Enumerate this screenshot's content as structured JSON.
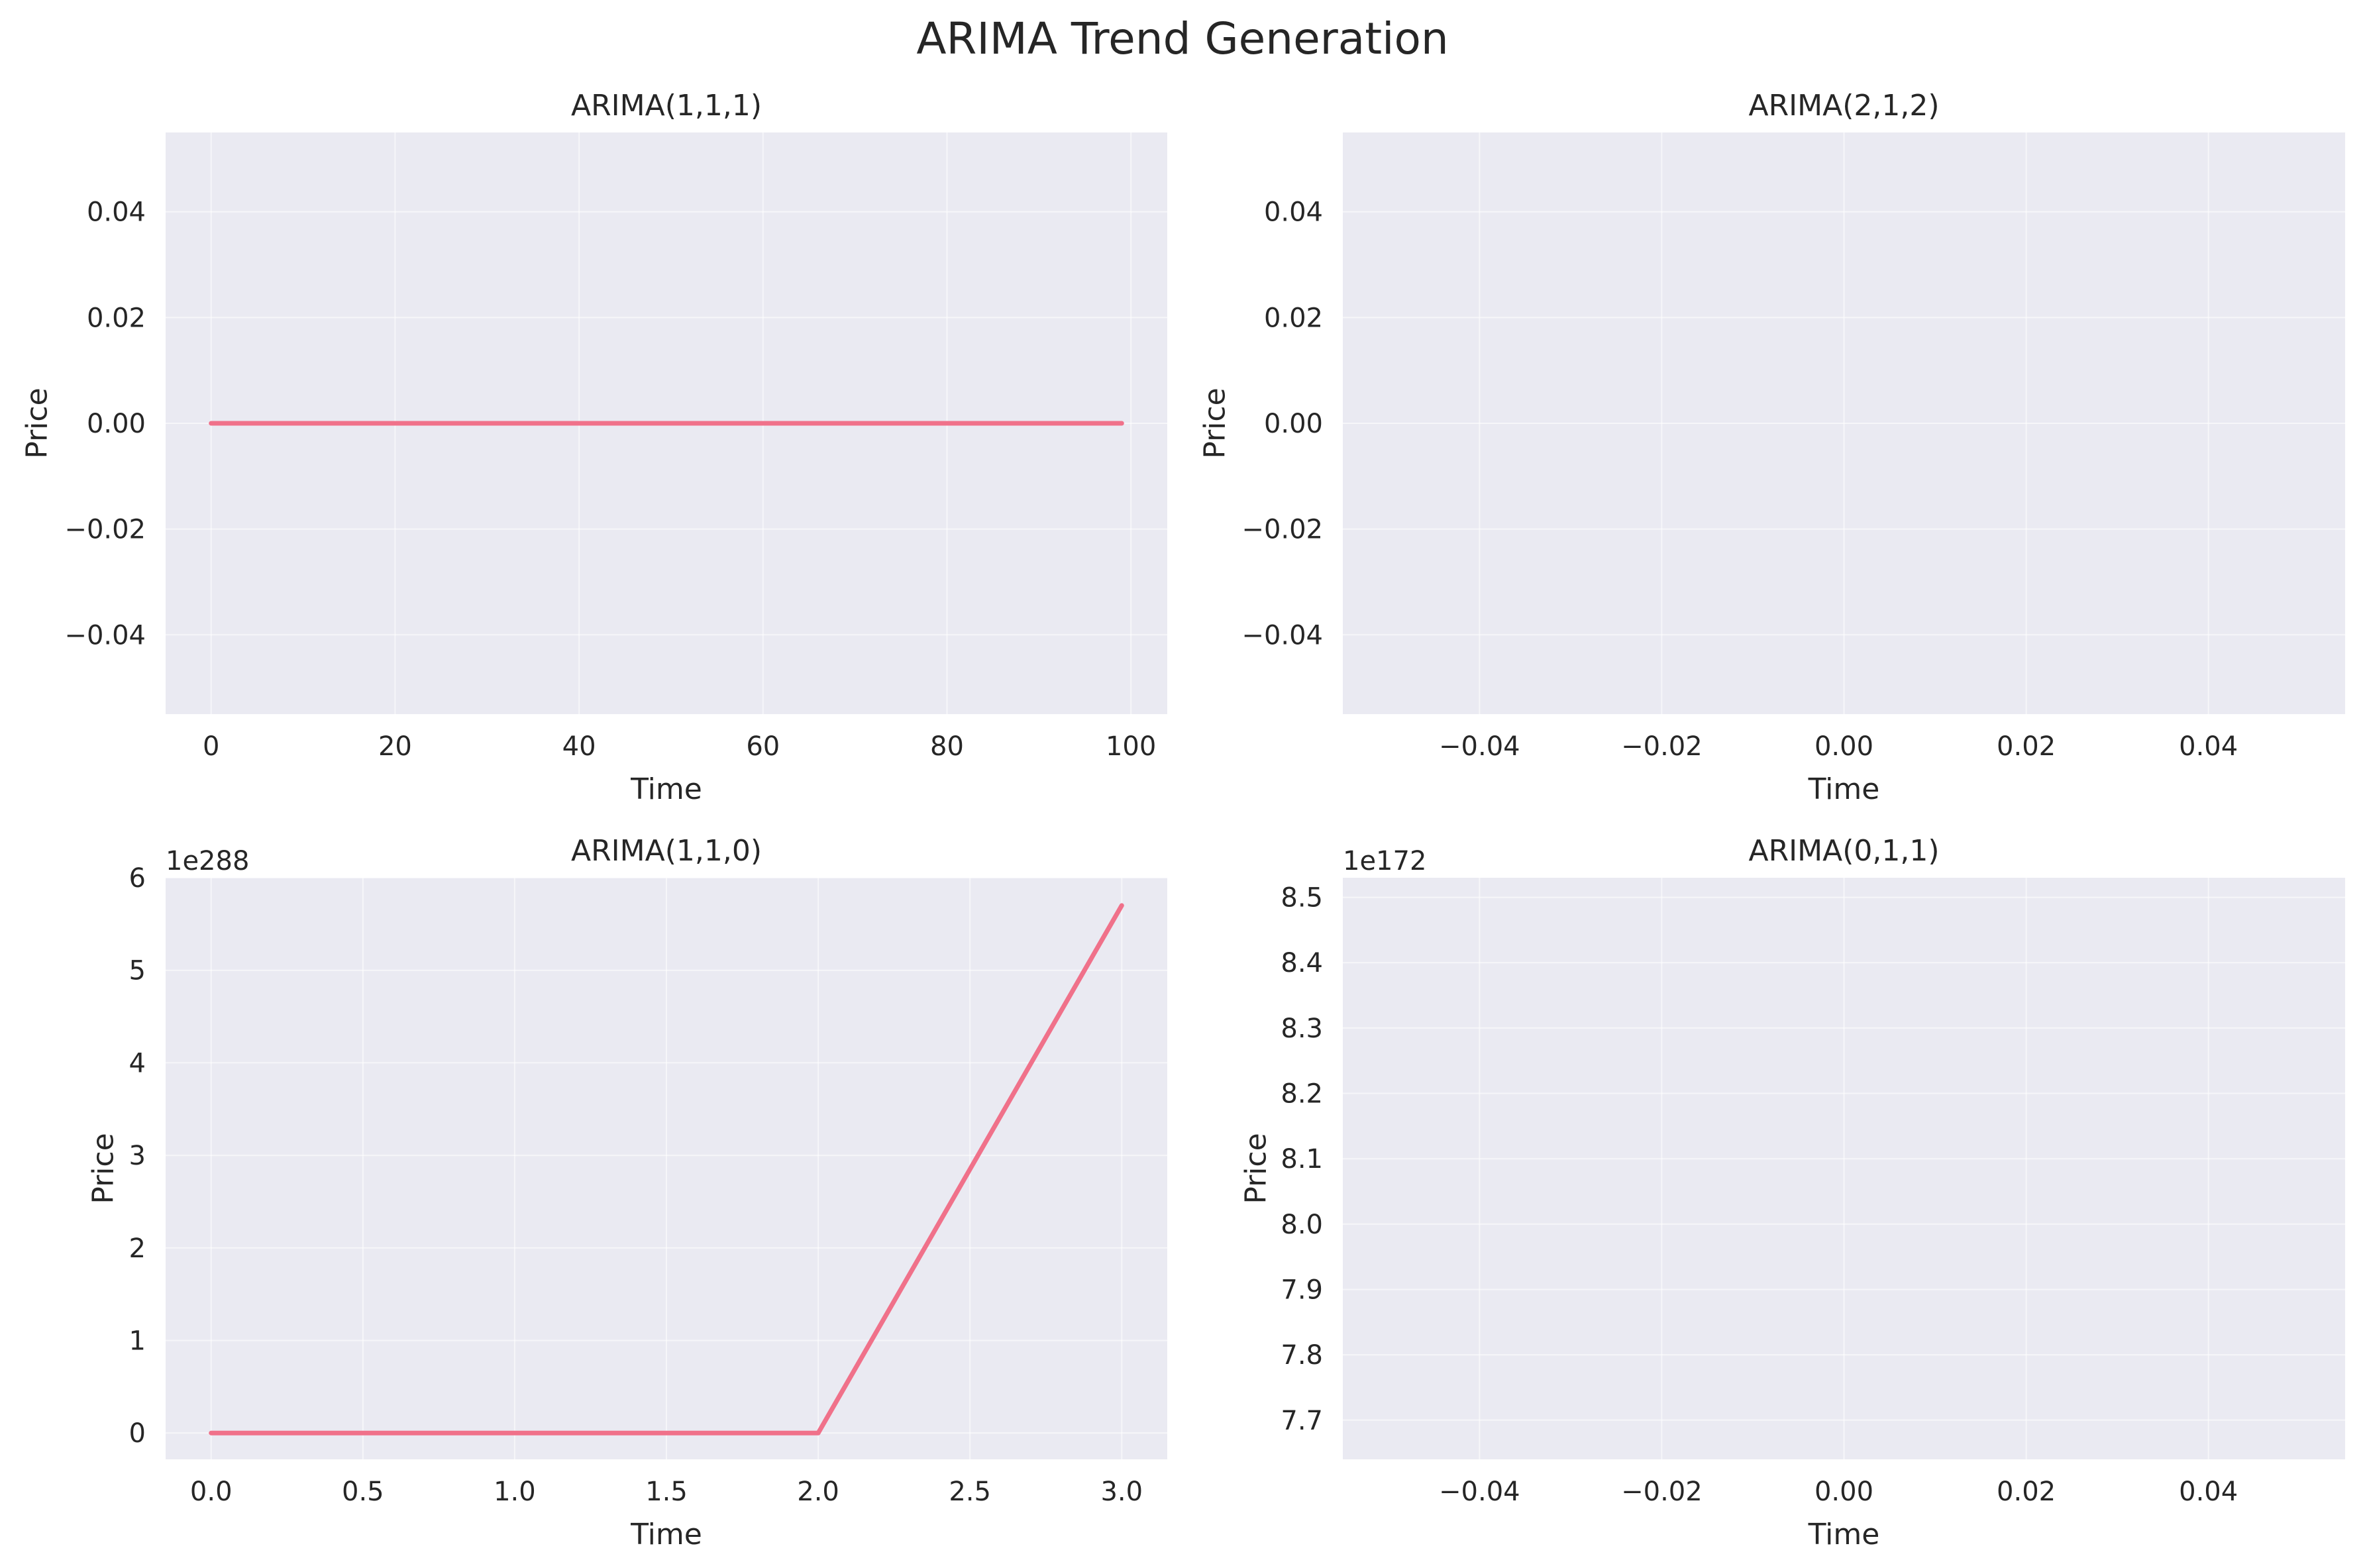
{
  "suptitle": "ARIMA Trend Generation",
  "colors": {
    "line": "#f0718a",
    "panel_bg": "#eaeaf2",
    "grid": "#ffffff",
    "text": "#262626"
  },
  "chart_data": [
    {
      "type": "line",
      "title": "ARIMA(1,1,1)",
      "xlabel": "Time",
      "ylabel": "Price",
      "offset_text": "",
      "xlim": [
        -4.95,
        103.95
      ],
      "ylim": [
        -0.055,
        0.055
      ],
      "xticks": [
        0,
        20,
        40,
        60,
        80,
        100
      ],
      "xtick_labels": [
        "0",
        "20",
        "40",
        "60",
        "80",
        "100"
      ],
      "yticks": [
        -0.04,
        -0.02,
        0.0,
        0.02,
        0.04
      ],
      "ytick_labels": [
        "−0.04",
        "−0.02",
        "0.00",
        "0.02",
        "0.04"
      ],
      "grid": true,
      "series": [
        {
          "x_range": [
            0,
            99
          ],
          "y": [
            0,
            0
          ]
        }
      ]
    },
    {
      "type": "line",
      "title": "ARIMA(2,1,2)",
      "xlabel": "Time",
      "ylabel": "Price",
      "offset_text": "",
      "xlim": [
        -0.055,
        0.055
      ],
      "ylim": [
        -0.055,
        0.055
      ],
      "xticks": [
        -0.04,
        -0.02,
        0.0,
        0.02,
        0.04
      ],
      "xtick_labels": [
        "−0.04",
        "−0.02",
        "0.00",
        "0.02",
        "0.04"
      ],
      "yticks": [
        -0.04,
        -0.02,
        0.0,
        0.02,
        0.04
      ],
      "ytick_labels": [
        "−0.04",
        "−0.02",
        "0.00",
        "0.02",
        "0.04"
      ],
      "grid": true,
      "series": []
    },
    {
      "type": "line",
      "title": "ARIMA(1,1,0)",
      "xlabel": "Time",
      "ylabel": "Price",
      "offset_text": "1e288",
      "xlim": [
        -0.15,
        3.15
      ],
      "ylim": [
        -0.285,
        6.0
      ],
      "xticks": [
        0.0,
        0.5,
        1.0,
        1.5,
        2.0,
        2.5,
        3.0
      ],
      "xtick_labels": [
        "0.0",
        "0.5",
        "1.0",
        "1.5",
        "2.0",
        "2.5",
        "3.0"
      ],
      "yticks": [
        0,
        1,
        2,
        3,
        4,
        5,
        6
      ],
      "ytick_labels": [
        "0",
        "1",
        "2",
        "3",
        "4",
        "5",
        "6"
      ],
      "grid": true,
      "series": [
        {
          "x": [
            0,
            1,
            2,
            3
          ],
          "y": [
            0,
            0,
            0,
            5.7
          ]
        }
      ]
    },
    {
      "type": "line",
      "title": "ARIMA(0,1,1)",
      "xlabel": "Time",
      "ylabel": "Price",
      "offset_text": "1e172",
      "xlim": [
        -0.055,
        0.055
      ],
      "ylim": [
        7.64,
        8.53
      ],
      "xticks": [
        -0.04,
        -0.02,
        0.0,
        0.02,
        0.04
      ],
      "xtick_labels": [
        "−0.04",
        "−0.02",
        "0.00",
        "0.02",
        "0.04"
      ],
      "yticks": [
        7.7,
        7.8,
        7.9,
        8.0,
        8.1,
        8.2,
        8.3,
        8.4,
        8.5
      ],
      "ytick_labels": [
        "7.7",
        "7.8",
        "7.9",
        "8.0",
        "8.1",
        "8.2",
        "8.3",
        "8.4",
        "8.5"
      ],
      "grid": true,
      "series": []
    }
  ]
}
